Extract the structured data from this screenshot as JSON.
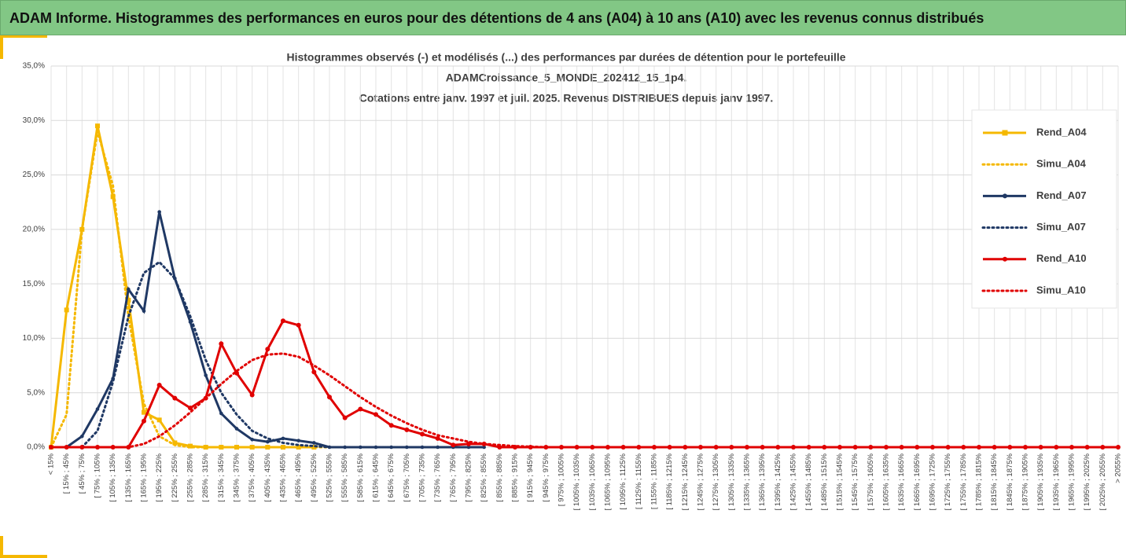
{
  "header": {
    "title": "ADAM Informe. Histogrammes des performances en euros pour des détentions de 4 ans (A04) à 10 ans (A10) avec les revenus connus distribués"
  },
  "chart_data": {
    "type": "line",
    "title": [
      "Histogrammes observés (-) et modélisés (...) des performances par durées de détention pour le portefeuille",
      "ADAMCroissance_5_MONDE_202412_15_1p4.",
      "Cotations entre janv. 1997 et juil. 2025. Revenus DISTRIBUES depuis janv 1997."
    ],
    "categories": [
      "< 15%",
      "[ 15% ; 45%",
      "[ 45% ; 75%",
      "[ 75% ; 105%",
      "[ 105% ; 135%",
      "[ 135% ; 165%",
      "[ 165% ; 195%",
      "[ 195% ; 225%",
      "[ 225% ; 255%",
      "[ 255% ; 285%",
      "[ 285% ; 315%",
      "[ 315% ; 345%",
      "[ 345% ; 375%",
      "[ 375% ; 405%",
      "[ 405% ; 435%",
      "[ 435% ; 465%",
      "[ 465% ; 495%",
      "[ 495% ; 525%",
      "[ 525% ; 555%",
      "[ 555% ; 585%",
      "[ 585% ; 615%",
      "[ 615% ; 645%",
      "[ 645% ; 675%",
      "[ 675% ; 705%",
      "[ 705% ; 735%",
      "[ 735% ; 765%",
      "[ 765% ; 795%",
      "[ 795% ; 825%",
      "[ 825% ; 855%",
      "[ 855% ; 885%",
      "[ 885% ; 915%",
      "[ 915% ; 945%",
      "[ 945% ; 975%",
      "[ 975% ; 1005%",
      "[ 1005% ; 1035%",
      "[ 1035% ; 1065%",
      "[ 1065% ; 1095%",
      "[ 1095% ; 1125%",
      "[ 1125% ; 1155%",
      "[ 1155% ; 1185%",
      "[ 1185% ; 1215%",
      "[ 1215% ; 1245%",
      "[ 1245% ; 1275%",
      "[ 1275% ; 1305%",
      "[ 1305% ; 1335%",
      "[ 1335% ; 1365%",
      "[ 1365% ; 1395%",
      "[ 1395% ; 1425%",
      "[ 1425% ; 1455%",
      "[ 1455% ; 1485%",
      "[ 1485% ; 1515%",
      "[ 1515% ; 1545%",
      "[ 1545% ; 1575%",
      "[ 1575% ; 1605%",
      "[ 1605% ; 1635%",
      "[ 1635% ; 1665%",
      "[ 1665% ; 1695%",
      "[ 1695% ; 1725%",
      "[ 1725% ; 1755%",
      "[ 1755% ; 1785%",
      "[ 1785% ; 1815%",
      "[ 1815% ; 1845%",
      "[ 1845% ; 1875%",
      "[ 1875% ; 1905%",
      "[ 1905% ; 1935%",
      "[ 1935% ; 1965%",
      "[ 1965% ; 1995%",
      "[ 1995% ; 2025%",
      "[ 2025% ; 2055%",
      "> 2055%"
    ],
    "series": [
      {
        "name": "Rend_A04",
        "color": "#f5b800",
        "line_style": "solid",
        "marker": "square",
        "values": [
          0,
          12.6,
          20,
          29.5,
          23,
          13.5,
          3.2,
          2.5,
          0.4,
          0.1,
          0,
          0,
          0,
          0,
          0,
          0,
          0,
          0,
          null,
          null,
          null,
          null,
          null,
          null,
          null,
          null,
          null,
          null,
          null,
          null,
          null,
          null,
          null,
          null,
          null,
          null,
          null,
          null,
          null,
          null,
          null,
          null,
          null,
          null,
          null,
          null,
          null,
          null,
          null,
          null,
          null,
          null,
          null,
          null,
          null,
          null,
          null,
          null,
          null,
          null,
          null,
          null,
          null,
          null,
          null,
          null,
          null,
          null,
          null,
          null
        ]
      },
      {
        "name": "Simu_A04",
        "color": "#f5b800",
        "line_style": "dotted",
        "marker": "none",
        "values": [
          0,
          3,
          20,
          29,
          24,
          12,
          4,
          1,
          0.2,
          0,
          0,
          0,
          0,
          0,
          0,
          0,
          0,
          0,
          0,
          null,
          null,
          null,
          null,
          null,
          null,
          null,
          null,
          null,
          null,
          null,
          null,
          null,
          null,
          null,
          null,
          null,
          null,
          null,
          null,
          null,
          null,
          null,
          null,
          null,
          null,
          null,
          null,
          null,
          null,
          null,
          null,
          null,
          null,
          null,
          null,
          null,
          null,
          null,
          null,
          null,
          null,
          null,
          null,
          null,
          null,
          null,
          null,
          null,
          null,
          null
        ]
      },
      {
        "name": "Rend_A07",
        "color": "#1f3864",
        "line_style": "solid",
        "marker": "circle",
        "values": [
          null,
          0,
          1,
          3.5,
          6.3,
          14.5,
          12.5,
          21.6,
          15.5,
          11.5,
          6.6,
          3.1,
          1.7,
          0.7,
          0.5,
          0.8,
          0.6,
          0.4,
          0,
          0,
          0,
          0,
          0,
          0,
          0,
          0,
          0,
          0,
          0,
          null,
          null,
          null,
          null,
          null,
          null,
          null,
          null,
          null,
          null,
          null,
          null,
          null,
          null,
          null,
          null,
          null,
          null,
          null,
          null,
          null,
          null,
          null,
          null,
          null,
          null,
          null,
          null,
          null,
          null,
          null,
          null,
          null,
          null,
          null,
          null,
          null,
          null,
          null,
          null,
          null
        ]
      },
      {
        "name": "Simu_A07",
        "color": "#1f3864",
        "line_style": "dotted",
        "marker": "none",
        "values": [
          null,
          null,
          0,
          1.5,
          6,
          12,
          16,
          17,
          15.5,
          12,
          8,
          5,
          3,
          1.5,
          0.8,
          0.4,
          0.2,
          0.1,
          0,
          0,
          0,
          0,
          0,
          0,
          0,
          0,
          0,
          0,
          0,
          null,
          null,
          null,
          null,
          null,
          null,
          null,
          null,
          null,
          null,
          null,
          null,
          null,
          null,
          null,
          null,
          null,
          null,
          null,
          null,
          null,
          null,
          null,
          null,
          null,
          null,
          null,
          null,
          null,
          null,
          null,
          null,
          null,
          null,
          null,
          null,
          null,
          null,
          null,
          null,
          null
        ]
      },
      {
        "name": "Rend_A10",
        "color": "#e00000",
        "line_style": "solid",
        "marker": "circle",
        "values": [
          0,
          0,
          0,
          0,
          0,
          0,
          2.4,
          5.7,
          4.5,
          3.6,
          4.5,
          9.5,
          6.8,
          4.8,
          9,
          11.6,
          11.2,
          6.9,
          4.6,
          2.7,
          3.5,
          3,
          2,
          1.6,
          1.2,
          0.8,
          0.2,
          0.3,
          0.3,
          0,
          0,
          0,
          0,
          0,
          0,
          0,
          0,
          0,
          0,
          0,
          0,
          0,
          0,
          0,
          0,
          0,
          0,
          0,
          0,
          0,
          0,
          0,
          0,
          0,
          0,
          0,
          0,
          0,
          0,
          0,
          0,
          0,
          0,
          0,
          0,
          0,
          0,
          0,
          0,
          0
        ]
      },
      {
        "name": "Simu_A10",
        "color": "#e00000",
        "line_style": "dotted",
        "marker": "none",
        "values": [
          0,
          0,
          0,
          0,
          0,
          0,
          0.3,
          1,
          2,
          3.2,
          4.5,
          5.8,
          7,
          8,
          8.5,
          8.6,
          8.3,
          7.5,
          6.6,
          5.6,
          4.6,
          3.7,
          2.9,
          2.2,
          1.6,
          1.1,
          0.8,
          0.5,
          0.3,
          0.2,
          0.1,
          0.05,
          0,
          0,
          0,
          0,
          0,
          0,
          0,
          0,
          0,
          0,
          0,
          0,
          0,
          0,
          0,
          0,
          0,
          0,
          0,
          0,
          0,
          0,
          0,
          0,
          0,
          0,
          0,
          0,
          0,
          0,
          0,
          0,
          0,
          0,
          0,
          0,
          0,
          0
        ]
      }
    ],
    "ylim": [
      0,
      35
    ],
    "yticks": [
      {
        "value": 0,
        "label": "0,0%"
      },
      {
        "value": 5,
        "label": "5,0%"
      },
      {
        "value": 10,
        "label": "10,0%"
      },
      {
        "value": 15,
        "label": "15,0%"
      },
      {
        "value": 20,
        "label": "20,0%"
      },
      {
        "value": 25,
        "label": "25,0%"
      },
      {
        "value": 30,
        "label": "30,0%"
      },
      {
        "value": 35,
        "label": "35,0%"
      }
    ],
    "grid": true,
    "legend": "right"
  }
}
